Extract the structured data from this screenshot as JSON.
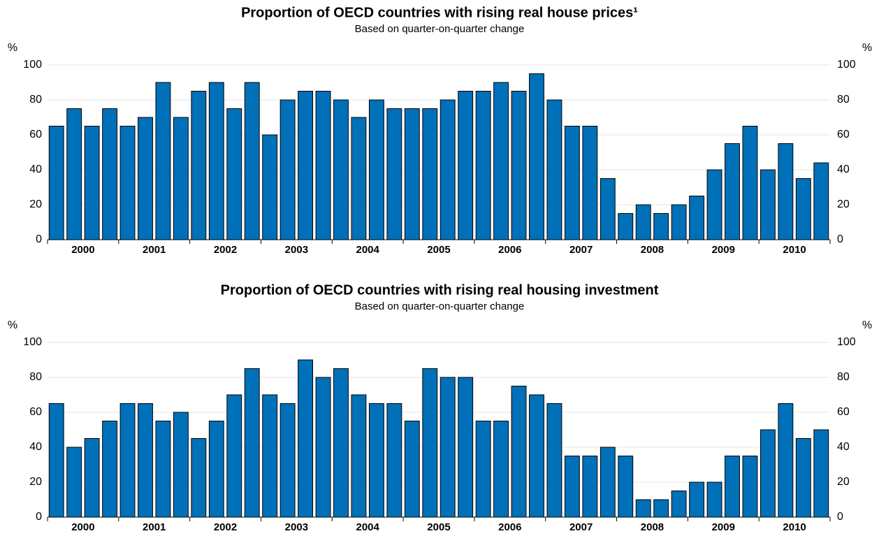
{
  "chart_data": [
    {
      "type": "bar",
      "title": "Proportion of OECD countries with rising real house prices¹",
      "subtitle": "Based on quarter-on-quarter change",
      "y_unit": "%",
      "y2_unit": "%",
      "categories": [
        null,
        "2000",
        null,
        null,
        null,
        "2001",
        null,
        null,
        null,
        "2002",
        null,
        null,
        null,
        "2003",
        null,
        null,
        null,
        "2004",
        null,
        null,
        null,
        "2005",
        null,
        null,
        null,
        "2006",
        null,
        null,
        null,
        "2007",
        null,
        null,
        null,
        "2008",
        null,
        null,
        null,
        "2009",
        null,
        null,
        null,
        "2010",
        null,
        null
      ],
      "values": [
        65,
        75,
        65,
        75,
        65,
        70,
        90,
        70,
        85,
        90,
        75,
        90,
        60,
        80,
        85,
        85,
        80,
        70,
        80,
        75,
        75,
        75,
        80,
        85,
        85,
        90,
        85,
        95,
        80,
        65,
        65,
        35,
        15,
        20,
        15,
        20,
        25,
        40,
        55,
        65,
        40,
        55,
        35,
        44
      ],
      "color": "#0070b8",
      "ylim": [
        0,
        100
      ],
      "yticks": [
        0,
        20,
        40,
        60,
        80,
        100
      ],
      "y2lim": [
        0,
        100
      ],
      "y2ticks": [
        0,
        20,
        40,
        60,
        80,
        100
      ],
      "grid": true
    },
    {
      "type": "bar",
      "title": "Proportion of OECD countries with rising real housing investment",
      "subtitle": "Based on quarter-on-quarter change",
      "y_unit": "%",
      "y2_unit": "%",
      "categories": [
        null,
        "2000",
        null,
        null,
        null,
        "2001",
        null,
        null,
        null,
        "2002",
        null,
        null,
        null,
        "2003",
        null,
        null,
        null,
        "2004",
        null,
        null,
        null,
        "2005",
        null,
        null,
        null,
        "2006",
        null,
        null,
        null,
        "2007",
        null,
        null,
        null,
        "2008",
        null,
        null,
        null,
        "2009",
        null,
        null,
        null,
        "2010",
        null,
        null
      ],
      "values": [
        65,
        40,
        45,
        55,
        65,
        65,
        55,
        60,
        45,
        55,
        70,
        85,
        70,
        65,
        90,
        80,
        85,
        70,
        65,
        65,
        55,
        85,
        80,
        80,
        55,
        55,
        75,
        70,
        65,
        35,
        35,
        40,
        35,
        10,
        10,
        15,
        20,
        20,
        35,
        35,
        50,
        65,
        45,
        50
      ],
      "color": "#0070b8",
      "ylim": [
        0,
        100
      ],
      "yticks": [
        0,
        20,
        40,
        60,
        80,
        100
      ],
      "y2lim": [
        0,
        100
      ],
      "y2ticks": [
        0,
        20,
        40,
        60,
        80,
        100
      ],
      "grid": true
    }
  ]
}
